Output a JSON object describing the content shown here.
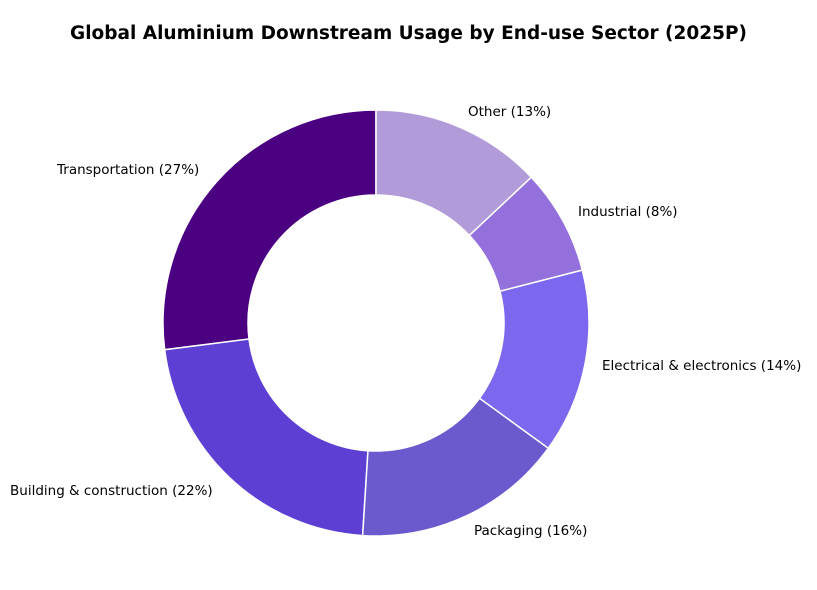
{
  "chart_data": {
    "type": "pie",
    "variant": "donut",
    "title": "Global Aluminium Downstream Usage by End-use Sector (2025P)",
    "start_angle_deg": 90,
    "direction": "counterclockwise",
    "categories": [
      "Transportation",
      "Building & construction",
      "Packaging",
      "Electrical & electronics",
      "Industrial",
      "Other"
    ],
    "values": [
      27,
      22,
      16,
      14,
      8,
      13
    ],
    "unit": "%",
    "colors": [
      "#4B0082",
      "#5D3FD3",
      "#6A5ACD",
      "#7B68EE",
      "#9370DB",
      "#B19CD9"
    ],
    "labels": [
      "Transportation (27%)",
      "Building & construction (22%)",
      "Packaging (16%)",
      "Electrical & electronics (14%)",
      "Industrial (8%)",
      "Other (13%)"
    ],
    "legend": "none"
  }
}
